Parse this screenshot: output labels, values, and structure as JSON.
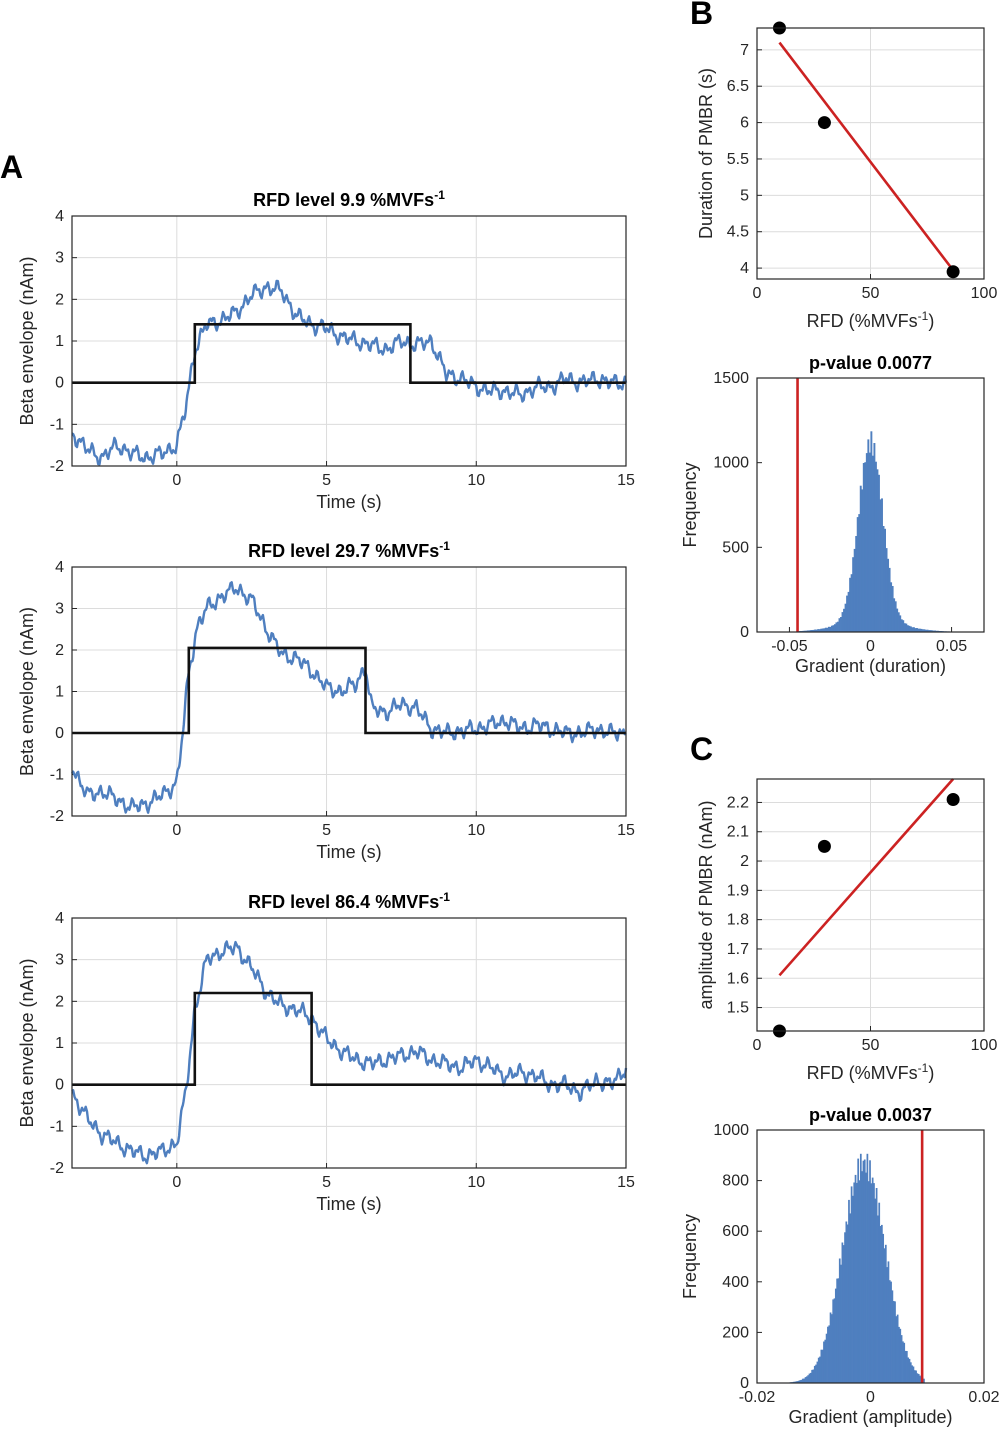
{
  "panel_letters": {
    "a": "A",
    "b": "B",
    "c": "C"
  },
  "colors": {
    "trace": "#4f7fbf",
    "step": "#111111",
    "fit": "#cc2222",
    "hist": "#4f7fbf",
    "points": "#000000"
  },
  "chart_data": [
    {
      "id": "a1",
      "type": "line",
      "title_main": "RFD level 9.9 %MVFs",
      "title_sup": "-1",
      "xlabel": "Time (s)",
      "ylabel": "Beta envelope (nAm)",
      "xlim": [
        -3.5,
        15
      ],
      "ylim": [
        -2,
        4
      ],
      "xticks": [
        0,
        5,
        10,
        15
      ],
      "yticks": [
        -2,
        -1,
        0,
        1,
        2,
        3,
        4
      ],
      "grid": true,
      "series": [
        {
          "values_x": [
            -3.5,
            -3,
            -2.5,
            -2,
            -1.5,
            -1,
            -0.5,
            0,
            0.3,
            0.6,
            1,
            1.5,
            2,
            2.5,
            3,
            3.5,
            4,
            4.5,
            5,
            5.5,
            6,
            6.5,
            7,
            7.5,
            8,
            8.5,
            9,
            9.5,
            10,
            10.5,
            11,
            11.5,
            12,
            12.5,
            13,
            13.5,
            14,
            14.5,
            15
          ],
          "values_y": [
            -1.2,
            -1.6,
            -1.8,
            -1.5,
            -1.7,
            -1.8,
            -1.7,
            -1.5,
            -0.6,
            0.8,
            1.4,
            1.5,
            1.7,
            2.1,
            2.3,
            2.2,
            1.6,
            1.4,
            1.3,
            1.1,
            1.0,
            0.9,
            0.8,
            1.0,
            0.9,
            1.0,
            0.2,
            0.1,
            -0.1,
            -0.2,
            -0.2,
            -0.3,
            -0.1,
            -0.1,
            0.1,
            0.0,
            0.1,
            0.0,
            0.0
          ]
        },
        {
          "values_x": [
            -3.5,
            0.6,
            0.6,
            7.8,
            7.8,
            15
          ],
          "values_y": [
            0,
            0,
            1.4,
            1.4,
            0,
            0
          ]
        }
      ]
    },
    {
      "id": "a2",
      "type": "line",
      "title_main": "RFD level 29.7 %MVFs",
      "title_sup": "-1",
      "xlabel": "Time (s)",
      "ylabel": "Beta envelope (nAm)",
      "xlim": [
        -3.5,
        15
      ],
      "ylim": [
        -2,
        4
      ],
      "xticks": [
        0,
        5,
        10,
        15
      ],
      "yticks": [
        -2,
        -1,
        0,
        1,
        2,
        3,
        4
      ],
      "grid": true,
      "series": [
        {
          "values_x": [
            -3.5,
            -3,
            -2.5,
            -2,
            -1.5,
            -1,
            -0.5,
            0,
            0.2,
            0.4,
            0.7,
            1,
            1.5,
            2,
            2.5,
            3,
            3.5,
            4,
            4.5,
            5,
            5.5,
            6,
            6.3,
            6.5,
            7,
            7.5,
            8,
            8.5,
            9,
            9.5,
            10,
            10.5,
            11,
            11.5,
            12,
            12.5,
            13,
            13.5,
            14,
            14.5,
            15
          ],
          "values_y": [
            -0.8,
            -1.5,
            -1.4,
            -1.6,
            -1.8,
            -1.7,
            -1.5,
            -1.2,
            0.0,
            1.5,
            2.6,
            3.0,
            3.3,
            3.5,
            3.2,
            2.5,
            1.9,
            1.8,
            1.5,
            1.1,
            1.0,
            1.2,
            1.6,
            0.6,
            0.5,
            0.7,
            0.6,
            0.1,
            0.0,
            0.05,
            0.1,
            0.2,
            0.3,
            0.1,
            0.2,
            0.1,
            0.0,
            0.0,
            0.1,
            0.0,
            0.0
          ]
        },
        {
          "values_x": [
            -3.5,
            0.4,
            0.4,
            6.3,
            6.3,
            15
          ],
          "values_y": [
            0,
            0,
            2.05,
            2.05,
            0,
            0
          ]
        }
      ]
    },
    {
      "id": "a3",
      "type": "line",
      "title_main": "RFD level 86.4 %MVFs",
      "title_sup": "-1",
      "xlabel": "Time (s)",
      "ylabel": "Beta envelope (nAm)",
      "xlim": [
        -3.5,
        15
      ],
      "ylim": [
        -2,
        4
      ],
      "xticks": [
        0,
        5,
        10,
        15
      ],
      "yticks": [
        -2,
        -1,
        0,
        1,
        2,
        3,
        4
      ],
      "grid": true,
      "series": [
        {
          "values_x": [
            -3.5,
            -3,
            -2.5,
            -2,
            -1.5,
            -1,
            -0.5,
            0,
            0.3,
            0.6,
            1,
            1.5,
            2,
            2.5,
            3,
            3.5,
            4,
            4.5,
            5,
            5.5,
            6,
            6.5,
            7,
            7.5,
            8,
            8.5,
            9,
            9.5,
            10,
            10.5,
            11,
            11.5,
            12,
            12.5,
            13,
            13.5,
            14,
            14.5,
            15
          ],
          "values_y": [
            -0.2,
            -0.8,
            -1.2,
            -1.4,
            -1.6,
            -1.7,
            -1.6,
            -1.4,
            -0.2,
            1.8,
            3.0,
            3.2,
            3.3,
            2.8,
            2.2,
            1.9,
            1.8,
            1.6,
            1.1,
            0.8,
            0.6,
            0.5,
            0.6,
            0.7,
            0.8,
            0.6,
            0.5,
            0.4,
            0.6,
            0.4,
            0.2,
            0.3,
            0.2,
            0.0,
            0.0,
            -0.2,
            0.1,
            0.0,
            0.4
          ]
        },
        {
          "values_x": [
            -3.5,
            0.6,
            0.6,
            4.5,
            4.5,
            15
          ],
          "values_y": [
            0,
            0,
            2.2,
            2.2,
            0,
            0
          ]
        }
      ]
    },
    {
      "id": "b1",
      "type": "scatter",
      "xlabel_main": "RFD (%MVFs",
      "xlabel_sup": "-1",
      "xlabel_end": ")",
      "ylabel": "Duration of PMBR (s)",
      "xlim": [
        0,
        100
      ],
      "ylim": [
        3.85,
        7.3
      ],
      "xticks": [
        0,
        50,
        100
      ],
      "yticks": [
        4,
        4.5,
        5,
        5.5,
        6,
        6.5,
        7
      ],
      "ytick_labels": [
        "4",
        "4.5",
        "5",
        "5.5",
        "6",
        "6.5",
        "7"
      ],
      "grid": true,
      "points": {
        "x": [
          9.9,
          29.7,
          86.4
        ],
        "y": [
          7.3,
          6.0,
          3.95
        ]
      },
      "fit_line": {
        "x": [
          9.9,
          86.4
        ],
        "y": [
          7.1,
          3.97
        ]
      }
    },
    {
      "id": "b2",
      "type": "bar",
      "title": "p-value 0.0077",
      "xlabel": "Gradient (duration)",
      "ylabel": "Frequency",
      "xlim": [
        -0.07,
        0.07
      ],
      "ylim": [
        0,
        1500
      ],
      "xticks": [
        -0.05,
        0,
        0.05
      ],
      "xtick_labels": [
        "-0.05",
        "0",
        "0.05"
      ],
      "yticks": [
        0,
        500,
        1000,
        1500
      ],
      "grid": false,
      "hist": {
        "center": 0.0,
        "sd": 0.0075,
        "peak": 1060,
        "tail_sd": 0.02,
        "tail_peak": 60,
        "xmin": -0.045,
        "xmax": 0.058
      },
      "observed": -0.045
    },
    {
      "id": "c1",
      "type": "scatter",
      "xlabel_main": "RFD (%MVFs",
      "xlabel_sup": "-1",
      "xlabel_end": ")",
      "ylabel": "amplitude of PMBR (nAm)",
      "xlim": [
        0,
        100
      ],
      "ylim": [
        1.42,
        2.28
      ],
      "xticks": [
        0,
        50,
        100
      ],
      "yticks": [
        1.5,
        1.6,
        1.7,
        1.8,
        1.9,
        2.0,
        2.1,
        2.2
      ],
      "ytick_labels": [
        "1.5",
        "1.6",
        "1.7",
        "1.8",
        "1.9",
        "2",
        "2.1",
        "2.2"
      ],
      "grid": true,
      "points": {
        "x": [
          9.9,
          29.7,
          86.4
        ],
        "y": [
          1.42,
          2.05,
          2.21
        ]
      },
      "fit_line": {
        "x": [
          9.9,
          86.4
        ],
        "y": [
          1.61,
          2.28
        ]
      }
    },
    {
      "id": "c2",
      "type": "bar",
      "title": "p-value 0.0037",
      "xlabel": "Gradient (amplitude)",
      "ylabel": "Frequency",
      "xlim": [
        -0.02,
        0.02
      ],
      "ylim": [
        0,
        1000
      ],
      "xticks": [
        -0.02,
        0,
        0.02
      ],
      "xtick_labels": [
        "-0.02",
        "0",
        "0.02"
      ],
      "yticks": [
        0,
        200,
        400,
        600,
        800,
        1000
      ],
      "grid": false,
      "hist": {
        "center": -0.0012,
        "sd": 0.0038,
        "peak": 870,
        "tail_sd": 0,
        "tail_peak": 0,
        "xmin": -0.016,
        "xmax": 0.0095
      },
      "observed": 0.0091
    }
  ]
}
